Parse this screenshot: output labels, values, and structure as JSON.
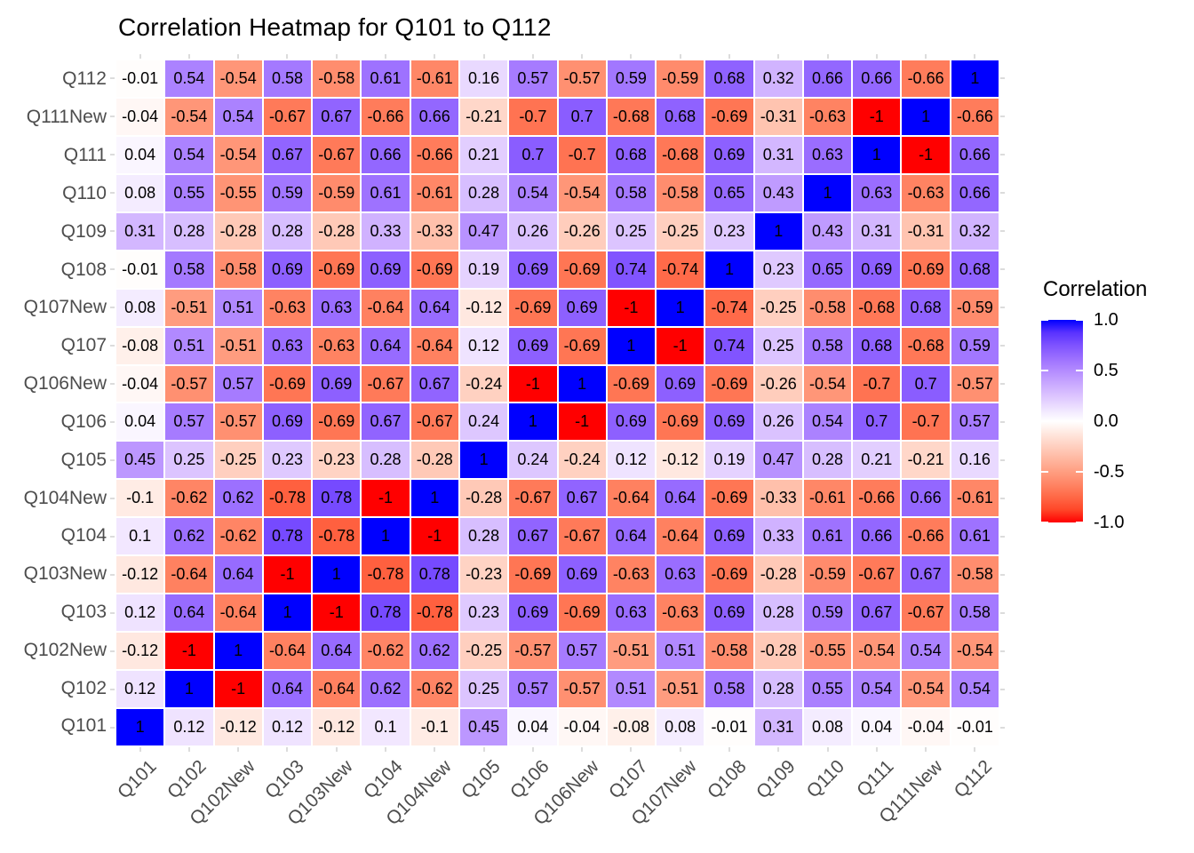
{
  "chart_data": {
    "type": "heatmap",
    "title": "Correlation Heatmap for Q101 to Q112",
    "legend_title": "Correlation",
    "legend_position": "right",
    "x_categories": [
      "Q101",
      "Q102",
      "Q102New",
      "Q103",
      "Q103New",
      "Q104",
      "Q104New",
      "Q105",
      "Q106",
      "Q106New",
      "Q107",
      "Q107New",
      "Q108",
      "Q109",
      "Q110",
      "Q111",
      "Q111New",
      "Q112"
    ],
    "y_categories_top_to_bottom": [
      "Q112",
      "Q111New",
      "Q111",
      "Q110",
      "Q109",
      "Q108",
      "Q107New",
      "Q107",
      "Q106New",
      "Q106",
      "Q105",
      "Q104New",
      "Q104",
      "Q103New",
      "Q103",
      "Q102New",
      "Q102",
      "Q101"
    ],
    "rows": [
      [
        -0.01,
        0.54,
        -0.54,
        0.58,
        -0.58,
        0.61,
        -0.61,
        0.16,
        0.57,
        -0.57,
        0.59,
        -0.59,
        0.68,
        0.32,
        0.66,
        0.66,
        -0.66,
        1
      ],
      [
        -0.04,
        -0.54,
        0.54,
        -0.67,
        0.67,
        -0.66,
        0.66,
        -0.21,
        -0.7,
        0.7,
        -0.68,
        0.68,
        -0.69,
        -0.31,
        -0.63,
        -1,
        1,
        -0.66
      ],
      [
        0.04,
        0.54,
        -0.54,
        0.67,
        -0.67,
        0.66,
        -0.66,
        0.21,
        0.7,
        -0.7,
        0.68,
        -0.68,
        0.69,
        0.31,
        0.63,
        1,
        -1,
        0.66
      ],
      [
        0.08,
        0.55,
        -0.55,
        0.59,
        -0.59,
        0.61,
        -0.61,
        0.28,
        0.54,
        -0.54,
        0.58,
        -0.58,
        0.65,
        0.43,
        1,
        0.63,
        -0.63,
        0.66
      ],
      [
        0.31,
        0.28,
        -0.28,
        0.28,
        -0.28,
        0.33,
        -0.33,
        0.47,
        0.26,
        -0.26,
        0.25,
        -0.25,
        0.23,
        1,
        0.43,
        0.31,
        -0.31,
        0.32
      ],
      [
        -0.01,
        0.58,
        -0.58,
        0.69,
        -0.69,
        0.69,
        -0.69,
        0.19,
        0.69,
        -0.69,
        0.74,
        -0.74,
        1,
        0.23,
        0.65,
        0.69,
        -0.69,
        0.68
      ],
      [
        0.08,
        -0.51,
        0.51,
        -0.63,
        0.63,
        -0.64,
        0.64,
        -0.12,
        -0.69,
        0.69,
        -1,
        1,
        -0.74,
        -0.25,
        -0.58,
        -0.68,
        0.68,
        -0.59
      ],
      [
        -0.08,
        0.51,
        -0.51,
        0.63,
        -0.63,
        0.64,
        -0.64,
        0.12,
        0.69,
        -0.69,
        1,
        -1,
        0.74,
        0.25,
        0.58,
        0.68,
        -0.68,
        0.59
      ],
      [
        -0.04,
        -0.57,
        0.57,
        -0.69,
        0.69,
        -0.67,
        0.67,
        -0.24,
        -1,
        1,
        -0.69,
        0.69,
        -0.69,
        -0.26,
        -0.54,
        -0.7,
        0.7,
        -0.57
      ],
      [
        0.04,
        0.57,
        -0.57,
        0.69,
        -0.69,
        0.67,
        -0.67,
        0.24,
        1,
        -1,
        0.69,
        -0.69,
        0.69,
        0.26,
        0.54,
        0.7,
        -0.7,
        0.57
      ],
      [
        0.45,
        0.25,
        -0.25,
        0.23,
        -0.23,
        0.28,
        -0.28,
        1,
        0.24,
        -0.24,
        0.12,
        -0.12,
        0.19,
        0.47,
        0.28,
        0.21,
        -0.21,
        0.16
      ],
      [
        -0.1,
        -0.62,
        0.62,
        -0.78,
        0.78,
        -1,
        1,
        -0.28,
        -0.67,
        0.67,
        -0.64,
        0.64,
        -0.69,
        -0.33,
        -0.61,
        -0.66,
        0.66,
        -0.61
      ],
      [
        0.1,
        0.62,
        -0.62,
        0.78,
        -0.78,
        1,
        -1,
        0.28,
        0.67,
        -0.67,
        0.64,
        -0.64,
        0.69,
        0.33,
        0.61,
        0.66,
        -0.66,
        0.61
      ],
      [
        -0.12,
        -0.64,
        0.64,
        -1,
        1,
        -0.78,
        0.78,
        -0.23,
        -0.69,
        0.69,
        -0.63,
        0.63,
        -0.69,
        -0.28,
        -0.59,
        -0.67,
        0.67,
        -0.58
      ],
      [
        0.12,
        0.64,
        -0.64,
        1,
        -1,
        0.78,
        -0.78,
        0.23,
        0.69,
        -0.69,
        0.63,
        -0.63,
        0.69,
        0.28,
        0.59,
        0.67,
        -0.67,
        0.58
      ],
      [
        -0.12,
        -1,
        1,
        -0.64,
        0.64,
        -0.62,
        0.62,
        -0.25,
        -0.57,
        0.57,
        -0.51,
        0.51,
        -0.58,
        -0.28,
        -0.55,
        -0.54,
        0.54,
        -0.54
      ],
      [
        0.12,
        1,
        -1,
        0.64,
        -0.64,
        0.62,
        -0.62,
        0.25,
        0.57,
        -0.57,
        0.51,
        -0.51,
        0.58,
        0.28,
        0.55,
        0.54,
        -0.54,
        0.54
      ],
      [
        1,
        0.12,
        -0.12,
        0.12,
        -0.12,
        0.1,
        -0.1,
        0.45,
        0.04,
        -0.04,
        -0.08,
        0.08,
        -0.01,
        0.31,
        0.08,
        0.04,
        -0.04,
        -0.01
      ]
    ],
    "value_range": [
      -1,
      1
    ],
    "colorscale": {
      "low": "#FF0000",
      "mid": "#FFFFFF",
      "high": "#0000FF",
      "space": "lab"
    },
    "legend_ticks": [
      {
        "label": "1.0",
        "value": 1
      },
      {
        "label": "0.5",
        "value": 0.5
      },
      {
        "label": "0.0",
        "value": 0
      },
      {
        "label": "-0.5",
        "value": -0.5
      },
      {
        "label": "-1.0",
        "value": -1
      }
    ],
    "cell_text_color": "#000000",
    "axis_text_color": "#4d4d4d"
  }
}
